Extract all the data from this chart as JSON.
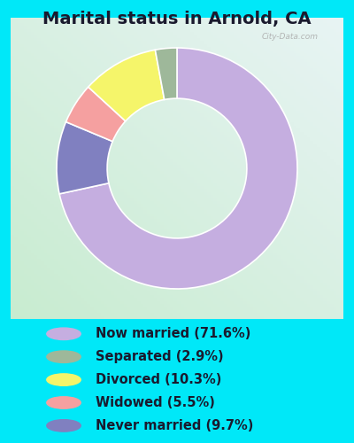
{
  "title": "Marital status in Arnold, CA",
  "slices": [
    71.6,
    9.7,
    5.5,
    10.3,
    2.9
  ],
  "labels_legend": [
    "Now married (71.6%)",
    "Separated (2.9%)",
    "Divorced (10.3%)",
    "Widowed (5.5%)",
    "Never married (9.7%)"
  ],
  "colors": [
    "#c5aee0",
    "#8080c0",
    "#f5a0a0",
    "#f5f56a",
    "#9eb89a"
  ],
  "legend_colors": [
    "#c5aee0",
    "#9eb89a",
    "#f5f56a",
    "#f5a0a0",
    "#8080c0"
  ],
  "background_outer": "#00e8f8",
  "watermark": "City-Data.com",
  "legend_fontsize": 10.5,
  "title_fontsize": 14
}
